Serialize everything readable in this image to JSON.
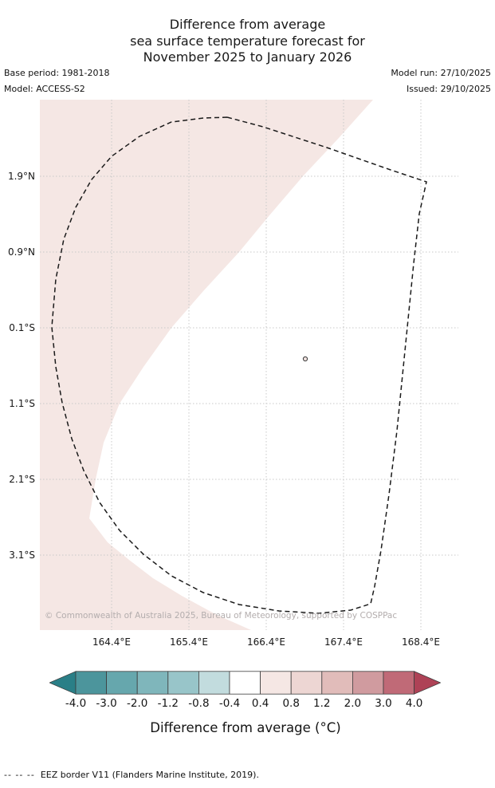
{
  "title": {
    "line1": "Difference from average",
    "line2": "sea surface temperature forecast for",
    "line3": "November 2025 to January 2026"
  },
  "header": {
    "base_period": "Base period: 1981-2018",
    "model": "Model: ACCESS-S2",
    "model_run": "Model run: 27/10/2025",
    "issued": "Issued: 29/10/2025"
  },
  "map": {
    "y_ticks": [
      "1.9°N",
      "0.9°N",
      "0.1°S",
      "1.1°S",
      "2.1°S",
      "3.1°S"
    ],
    "x_ticks": [
      "164.4°E",
      "165.4°E",
      "166.4°E",
      "167.4°E",
      "168.4°E"
    ],
    "copyright": "© Commonwealth of Australia 2025, Bureau of Meteorology, supported by COSPPac",
    "anomaly_fill_color": "#f5e7e4",
    "grid_color": "#c8c8c8",
    "eez_border_color": "#1a1a1a"
  },
  "colorbar": {
    "label": "Difference from average (°C)",
    "ticks": [
      "-4.0",
      "-3.0",
      "-2.0",
      "-1.2",
      "-0.8",
      "-0.4",
      "0.4",
      "0.8",
      "1.2",
      "2.0",
      "3.0",
      "4.0"
    ],
    "segment_colors": [
      "#4c959c",
      "#66a7ad",
      "#7fb6bb",
      "#98c5c9",
      "#c2dcde",
      "#ffffff",
      "#f5e7e4",
      "#edd6d3",
      "#e1bcba",
      "#d09b9f",
      "#c06a77"
    ],
    "arrow_left_color": "#2a7f87",
    "arrow_right_color": "#ae4256"
  },
  "footer": {
    "dash_sample": "--  --  --",
    "note": "EEZ border V11 (Flanders Marine Institute, 2019)."
  },
  "chart_data": {
    "type": "heatmap",
    "subtype": "geographic_sst_anomaly_forecast_map",
    "title": "Difference from average sea surface temperature forecast for November 2025 to January 2026",
    "base_period": "1981-2018",
    "model": "ACCESS-S2",
    "model_run": "27/10/2025",
    "issued": "29/10/2025",
    "x_axis": {
      "label": "Longitude",
      "ticks": [
        "164.4°E",
        "165.4°E",
        "166.4°E",
        "167.4°E",
        "168.4°E"
      ]
    },
    "y_axis": {
      "label": "Latitude",
      "ticks": [
        "1.9°N",
        "0.9°N",
        "0.1°S",
        "1.1°S",
        "2.1°S",
        "3.1°S"
      ]
    },
    "grid": true,
    "colorbar": {
      "label": "Difference from average (°C)",
      "tick_values": [
        -4.0,
        -3.0,
        -2.0,
        -1.2,
        -0.8,
        -0.4,
        0.4,
        0.8,
        1.2,
        2.0,
        3.0,
        4.0
      ],
      "segment_colors": [
        "#4c959c",
        "#66a7ad",
        "#7fb6bb",
        "#98c5c9",
        "#c2dcde",
        "#ffffff",
        "#f5e7e4",
        "#edd6d3",
        "#e1bcba",
        "#d09b9f",
        "#c06a77"
      ],
      "arrow_ends": {
        "below_min": "#2a7f87",
        "above_max": "#ae4256"
      }
    },
    "regions": [
      {
        "anomaly_range_c": "0.4 to 0.8",
        "color": "#f5e7e4",
        "location": "western and southwestern portion of map"
      },
      {
        "anomaly_range_c": "-0.4 to 0.4",
        "color": "#ffffff",
        "location": "central and eastern portion of map"
      }
    ],
    "overlays": [
      {
        "name": "EEZ border V11",
        "style": "black dashed closed polygon"
      },
      {
        "name": "island marker",
        "approx_position": "166.9°E, 0.5°S"
      }
    ],
    "annotations": [
      "© Commonwealth of Australia 2025, Bureau of Meteorology, supported by COSPPac"
    ]
  }
}
